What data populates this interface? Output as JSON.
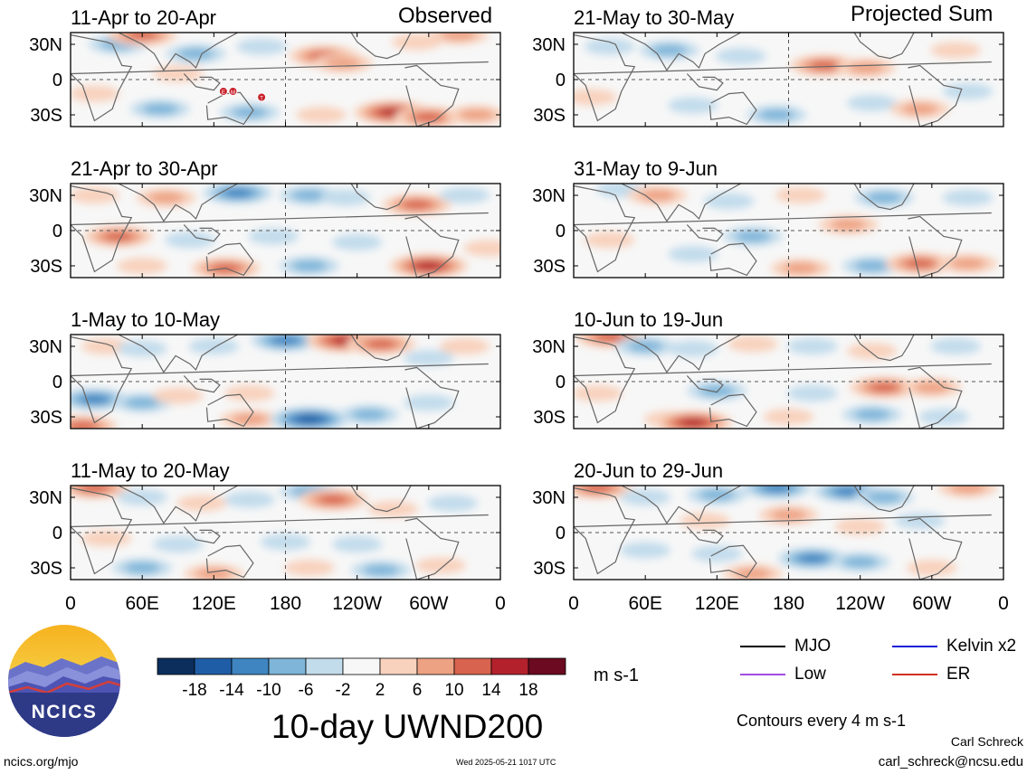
{
  "figure": {
    "main_title": "10-day UWND200",
    "left_column_label": "Observed",
    "right_column_label": "Projected Sum",
    "units": "m s-1",
    "contour_note": "Contours every 4 m s-1",
    "footer_left": "ncics.org/mjo",
    "footer_center": "Wed 2025-05-21 1017 UTC",
    "author": "Carl Schreck",
    "author_email": "carl_schreck@ncsu.edu",
    "logo_text": "NCICS"
  },
  "legend": {
    "items": [
      {
        "label": "MJO",
        "color": "#000000"
      },
      {
        "label": "Kelvin x2",
        "color": "#1a1adb"
      },
      {
        "label": "Low",
        "color": "#a24de0"
      },
      {
        "label": "ER",
        "color": "#d0301e"
      }
    ]
  },
  "colorbar": {
    "labels": [
      "-18",
      "-14",
      "-10",
      "-6",
      "-2",
      "2",
      "6",
      "10",
      "14",
      "18"
    ],
    "colors": [
      "#0b2e5c",
      "#1f5ea6",
      "#3f85c1",
      "#7eb5d9",
      "#c2dcec",
      "#f7f7f7",
      "#f8d2bd",
      "#eda283",
      "#d8634e",
      "#b3212d",
      "#6b0a20"
    ]
  },
  "chart_data": {
    "type": "heatmap",
    "variable": "200-hPa zonal wind anomaly",
    "units": "m s-1",
    "contour_interval": 4,
    "x_ticks": [
      "0",
      "60E",
      "120E",
      "180",
      "120W",
      "60W",
      "0"
    ],
    "y_ticks": [
      "30N",
      "0",
      "30S"
    ],
    "panels": [
      {
        "period": "11-Apr to 20-Apr",
        "column": "Observed",
        "blobs": [
          [
            40,
            30,
            -10
          ],
          [
            60,
            38,
            14
          ],
          [
            105,
            22,
            -10
          ],
          [
            160,
            28,
            -6
          ],
          [
            212,
            20,
            14
          ],
          [
            228,
            14,
            10
          ],
          [
            290,
            32,
            6
          ],
          [
            325,
            38,
            10
          ],
          [
            20,
            -12,
            6
          ],
          [
            75,
            -25,
            -10
          ],
          [
            150,
            -28,
            -10
          ],
          [
            210,
            -30,
            6
          ],
          [
            270,
            -28,
            18
          ],
          [
            300,
            -32,
            14
          ],
          [
            340,
            -30,
            10
          ],
          [
            90,
            5,
            6
          ]
        ],
        "markers": [
          {
            "lon": 128,
            "lat": -10,
            "label": "E"
          },
          {
            "lon": 136,
            "lat": -10,
            "label": "M"
          },
          {
            "lon": 160,
            "lat": -15,
            "label": "T"
          }
        ]
      },
      {
        "period": "21-May to 30-May",
        "column": "Projected Sum",
        "blobs": [
          [
            30,
            28,
            -6
          ],
          [
            80,
            25,
            -10
          ],
          [
            140,
            20,
            -6
          ],
          [
            210,
            12,
            14
          ],
          [
            245,
            10,
            10
          ],
          [
            320,
            25,
            6
          ],
          [
            15,
            -15,
            6
          ],
          [
            100,
            -22,
            -6
          ],
          [
            170,
            -30,
            -10
          ],
          [
            250,
            -20,
            -6
          ],
          [
            290,
            -25,
            10
          ],
          [
            330,
            -10,
            -6
          ]
        ]
      },
      {
        "period": "21-Apr to 30-Apr",
        "column": "Observed",
        "blobs": [
          [
            20,
            30,
            6
          ],
          [
            80,
            28,
            10
          ],
          [
            140,
            32,
            -14
          ],
          [
            200,
            30,
            -10
          ],
          [
            230,
            28,
            -6
          ],
          [
            290,
            22,
            14
          ],
          [
            330,
            30,
            -6
          ],
          [
            40,
            -5,
            14
          ],
          [
            100,
            -8,
            -6
          ],
          [
            170,
            -5,
            -6
          ],
          [
            240,
            -10,
            -6
          ],
          [
            130,
            -32,
            14
          ],
          [
            200,
            -30,
            -10
          ],
          [
            300,
            -30,
            18
          ],
          [
            60,
            -30,
            6
          ],
          [
            350,
            -15,
            6
          ]
        ]
      },
      {
        "period": "31-May to 9-Jun",
        "column": "Projected Sum",
        "blobs": [
          [
            40,
            35,
            -6
          ],
          [
            70,
            30,
            10
          ],
          [
            130,
            25,
            -6
          ],
          [
            190,
            30,
            6
          ],
          [
            260,
            28,
            -10
          ],
          [
            330,
            28,
            -6
          ],
          [
            30,
            -8,
            6
          ],
          [
            150,
            -5,
            -10
          ],
          [
            230,
            5,
            10
          ],
          [
            100,
            -20,
            -6
          ],
          [
            190,
            -32,
            10
          ],
          [
            250,
            -30,
            -10
          ],
          [
            290,
            -28,
            14
          ],
          [
            330,
            -28,
            10
          ]
        ]
      },
      {
        "period": "1-May to 10-May",
        "column": "Observed",
        "blobs": [
          [
            30,
            30,
            6
          ],
          [
            60,
            28,
            -6
          ],
          [
            120,
            30,
            -6
          ],
          [
            180,
            35,
            -14
          ],
          [
            230,
            35,
            18
          ],
          [
            260,
            32,
            14
          ],
          [
            300,
            20,
            -6
          ],
          [
            330,
            30,
            6
          ],
          [
            20,
            -15,
            -14
          ],
          [
            60,
            -18,
            -10
          ],
          [
            90,
            -12,
            6
          ],
          [
            150,
            -10,
            6
          ],
          [
            10,
            -38,
            14
          ],
          [
            150,
            -32,
            10
          ],
          [
            200,
            -32,
            -18
          ],
          [
            250,
            -28,
            -10
          ],
          [
            300,
            -18,
            -6
          ]
        ]
      },
      {
        "period": "10-Jun to 19-Jun",
        "column": "Projected Sum",
        "blobs": [
          [
            30,
            38,
            14
          ],
          [
            60,
            30,
            -10
          ],
          [
            100,
            28,
            -6
          ],
          [
            150,
            32,
            6
          ],
          [
            200,
            30,
            -6
          ],
          [
            250,
            26,
            6
          ],
          [
            320,
            30,
            -6
          ],
          [
            20,
            -10,
            6
          ],
          [
            120,
            -8,
            -10
          ],
          [
            200,
            -10,
            -6
          ],
          [
            260,
            -5,
            14
          ],
          [
            300,
            -5,
            10
          ],
          [
            80,
            -32,
            6
          ],
          [
            100,
            -35,
            18
          ],
          [
            180,
            -30,
            6
          ],
          [
            250,
            -28,
            -10
          ],
          [
            310,
            -30,
            -6
          ]
        ]
      },
      {
        "period": "11-May to 20-May",
        "column": "Observed",
        "blobs": [
          [
            20,
            38,
            14
          ],
          [
            60,
            30,
            -6
          ],
          [
            110,
            25,
            6
          ],
          [
            150,
            28,
            -6
          ],
          [
            200,
            35,
            -10
          ],
          [
            220,
            28,
            14
          ],
          [
            270,
            20,
            6
          ],
          [
            320,
            25,
            -6
          ],
          [
            30,
            -5,
            6
          ],
          [
            90,
            -10,
            -6
          ],
          [
            180,
            -8,
            -6
          ],
          [
            240,
            -10,
            -6
          ],
          [
            60,
            -30,
            -10
          ],
          [
            120,
            -35,
            10
          ],
          [
            200,
            -30,
            6
          ],
          [
            260,
            -32,
            -10
          ],
          [
            310,
            -28,
            6
          ]
        ]
      },
      {
        "period": "20-Jun to 29-Jun",
        "column": "Projected Sum",
        "blobs": [
          [
            20,
            38,
            14
          ],
          [
            60,
            30,
            -6
          ],
          [
            120,
            32,
            -10
          ],
          [
            170,
            38,
            -14
          ],
          [
            230,
            35,
            -14
          ],
          [
            260,
            30,
            -10
          ],
          [
            330,
            38,
            10
          ],
          [
            110,
            10,
            6
          ],
          [
            180,
            15,
            10
          ],
          [
            240,
            5,
            6
          ],
          [
            290,
            10,
            -6
          ],
          [
            60,
            -15,
            -6
          ],
          [
            120,
            -18,
            -6
          ],
          [
            200,
            -22,
            -14
          ],
          [
            240,
            -25,
            -10
          ],
          [
            300,
            -30,
            6
          ],
          [
            150,
            -35,
            10
          ]
        ]
      }
    ]
  }
}
